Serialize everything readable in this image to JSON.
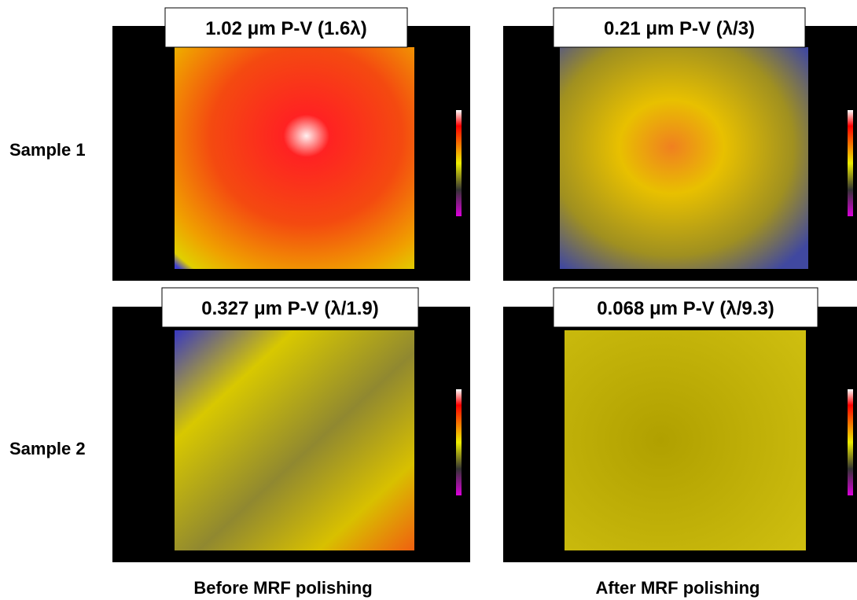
{
  "rows": [
    {
      "label": "Sample 1"
    },
    {
      "label": "Sample 2"
    }
  ],
  "columns": [
    {
      "label": "Before MRF polishing"
    },
    {
      "label": "After MRF polishing"
    }
  ],
  "panels": [
    {
      "title": "1.02 μm P-V (1.6λ)"
    },
    {
      "title": "0.21 μm P-V (λ/3)"
    },
    {
      "title": "0.327 μm P-V (λ/1.9)"
    },
    {
      "title": "0.068 μm P-V (λ/9.3)"
    }
  ]
}
